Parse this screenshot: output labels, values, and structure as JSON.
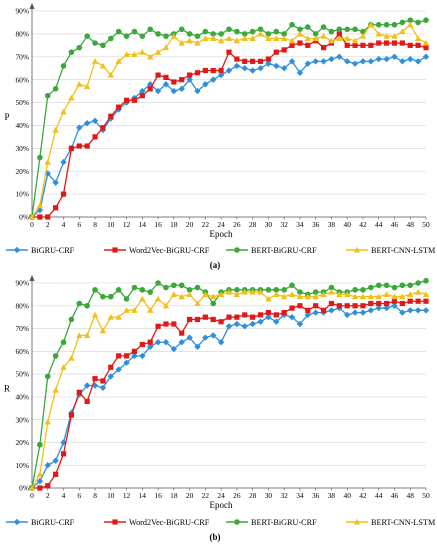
{
  "chart_data": [
    {
      "type": "line",
      "panel_label": "(a)",
      "xlabel": "Epoch",
      "ylabel": "P",
      "x": [
        0,
        1,
        2,
        3,
        4,
        5,
        6,
        7,
        8,
        9,
        10,
        11,
        12,
        13,
        14,
        15,
        16,
        17,
        18,
        19,
        20,
        21,
        22,
        23,
        24,
        25,
        26,
        27,
        28,
        29,
        30,
        31,
        32,
        33,
        34,
        35,
        36,
        37,
        38,
        39,
        40,
        41,
        42,
        43,
        44,
        45,
        46,
        47,
        48,
        49,
        50
      ],
      "xlim": [
        0,
        50
      ],
      "ylim": [
        0,
        90
      ],
      "x_ticks": [
        0,
        2,
        4,
        6,
        8,
        10,
        12,
        14,
        16,
        18,
        20,
        22,
        24,
        26,
        28,
        30,
        32,
        34,
        36,
        38,
        40,
        42,
        44,
        46,
        48,
        50
      ],
      "y_ticks": [
        0,
        10,
        20,
        30,
        40,
        50,
        60,
        70,
        80,
        90
      ],
      "y_tick_labels": [
        "0%",
        "10%",
        "20%",
        "30%",
        "40%",
        "50%",
        "60%",
        "70%",
        "80%",
        "90%"
      ],
      "grid": true,
      "legend_position": "bottom",
      "series": [
        {
          "name": "BiGRU-CRF",
          "color": "#2f8fdc",
          "marker": "diamond",
          "values": [
            0,
            3,
            19,
            15,
            24,
            30,
            39,
            41,
            42,
            38,
            43,
            47,
            50,
            52,
            55,
            58,
            55,
            58,
            55,
            56,
            60,
            55,
            58,
            60,
            62,
            64,
            66,
            65,
            64,
            65,
            67,
            66,
            65,
            68,
            63,
            67,
            68,
            68,
            69,
            70,
            68,
            67,
            68,
            68,
            69,
            69,
            70,
            68,
            69,
            68,
            70
          ]
        },
        {
          "name": "Word2Vec-BiGRU-CRF",
          "color": "#e01818",
          "marker": "square",
          "values": [
            0,
            0,
            0,
            4,
            10,
            30,
            31,
            31,
            35,
            39,
            44,
            48,
            51,
            51,
            53,
            56,
            62,
            61,
            59,
            60,
            62,
            63,
            64,
            64,
            64,
            72,
            69,
            68,
            68,
            68,
            69,
            72,
            73,
            75,
            76,
            75,
            77,
            74,
            76,
            80,
            75,
            75,
            75,
            75,
            76,
            76,
            76,
            76,
            75,
            75,
            74
          ]
        },
        {
          "name": "BERT-BiGRU-CRF",
          "color": "#3aa83a",
          "marker": "circle",
          "values": [
            0,
            26,
            53,
            56,
            66,
            72,
            74,
            79,
            76,
            75,
            78,
            81,
            79,
            81,
            79,
            82,
            80,
            79,
            80,
            82,
            80,
            79,
            81,
            80,
            80,
            82,
            81,
            80,
            81,
            82,
            80,
            81,
            80,
            84,
            82,
            83,
            80,
            83,
            81,
            82,
            82,
            82,
            81,
            84,
            84,
            84,
            84,
            85,
            86,
            85,
            86
          ]
        },
        {
          "name": "BERT-CNN-LSTM",
          "color": "#f2c01a",
          "marker": "triangle",
          "values": [
            0,
            5,
            24,
            38,
            46,
            52,
            58,
            57,
            68,
            66,
            62,
            68,
            71,
            71,
            72,
            70,
            72,
            74,
            79,
            76,
            77,
            76,
            78,
            78,
            77,
            78,
            77,
            78,
            78,
            80,
            78,
            78,
            78,
            77,
            80,
            78,
            78,
            79,
            77,
            78,
            78,
            77,
            79,
            84,
            80,
            79,
            79,
            81,
            84,
            78,
            76
          ]
        }
      ]
    },
    {
      "type": "line",
      "panel_label": "(b)",
      "xlabel": "Epoch",
      "ylabel": "R",
      "x": [
        0,
        1,
        2,
        3,
        4,
        5,
        6,
        7,
        8,
        9,
        10,
        11,
        12,
        13,
        14,
        15,
        16,
        17,
        18,
        19,
        20,
        21,
        22,
        23,
        24,
        25,
        26,
        27,
        28,
        29,
        30,
        31,
        32,
        33,
        34,
        35,
        36,
        37,
        38,
        39,
        40,
        41,
        42,
        43,
        44,
        45,
        46,
        47,
        48,
        49,
        50
      ],
      "xlim": [
        0,
        50
      ],
      "ylim": [
        0,
        90
      ],
      "x_ticks": [
        0,
        2,
        4,
        6,
        8,
        10,
        12,
        14,
        16,
        18,
        20,
        22,
        24,
        26,
        28,
        30,
        32,
        34,
        36,
        38,
        40,
        42,
        44,
        46,
        48,
        50
      ],
      "y_ticks": [
        0,
        10,
        20,
        30,
        40,
        50,
        60,
        70,
        80,
        90
      ],
      "y_tick_labels": [
        "0%",
        "10%",
        "20%",
        "30%",
        "40%",
        "50%",
        "60%",
        "70%",
        "80%",
        "90%"
      ],
      "grid": true,
      "legend_position": "bottom",
      "series": [
        {
          "name": "BiGRU-CRF",
          "color": "#2f8fdc",
          "marker": "diamond",
          "values": [
            0,
            3,
            10,
            12,
            20,
            33,
            41,
            45,
            45,
            44,
            49,
            52,
            55,
            58,
            58,
            62,
            64,
            64,
            61,
            64,
            66,
            62,
            66,
            67,
            64,
            71,
            72,
            71,
            72,
            73,
            75,
            73,
            76,
            75,
            72,
            76,
            77,
            77,
            78,
            79,
            76,
            77,
            77,
            78,
            79,
            79,
            80,
            77,
            78,
            78,
            78
          ]
        },
        {
          "name": "Word2Vec-BiGRU-CRF",
          "color": "#e01818",
          "marker": "square",
          "values": [
            0,
            0,
            1,
            6,
            15,
            32,
            42,
            38,
            48,
            47,
            53,
            58,
            58,
            60,
            63,
            64,
            71,
            72,
            72,
            68,
            74,
            74,
            75,
            74,
            73,
            75,
            75,
            76,
            75,
            76,
            77,
            76,
            77,
            79,
            80,
            78,
            80,
            78,
            81,
            80,
            80,
            80,
            80,
            81,
            81,
            81,
            82,
            81,
            82,
            82,
            82
          ]
        },
        {
          "name": "BERT-BiGRU-CRF",
          "color": "#3aa83a",
          "marker": "circle",
          "values": [
            0,
            19,
            49,
            58,
            64,
            74,
            81,
            80,
            87,
            84,
            84,
            87,
            83,
            88,
            87,
            86,
            90,
            88,
            89,
            89,
            87,
            88,
            86,
            81,
            86,
            87,
            87,
            87,
            87,
            87,
            87,
            87,
            87,
            89,
            86,
            85,
            86,
            86,
            88,
            86,
            86,
            87,
            87,
            88,
            89,
            89,
            88,
            89,
            89,
            90,
            91
          ]
        },
        {
          "name": "BERT-CNN-LSTM",
          "color": "#f2c01a",
          "marker": "triangle",
          "values": [
            0,
            6,
            29,
            43,
            53,
            57,
            67,
            67,
            76,
            69,
            75,
            75,
            78,
            78,
            83,
            78,
            83,
            80,
            85,
            84,
            85,
            81,
            85,
            84,
            85,
            86,
            85,
            86,
            86,
            86,
            83,
            85,
            84,
            85,
            84,
            84,
            84,
            85,
            86,
            85,
            85,
            84,
            84,
            84,
            84,
            85,
            84,
            84,
            85,
            86,
            85
          ]
        }
      ]
    }
  ]
}
